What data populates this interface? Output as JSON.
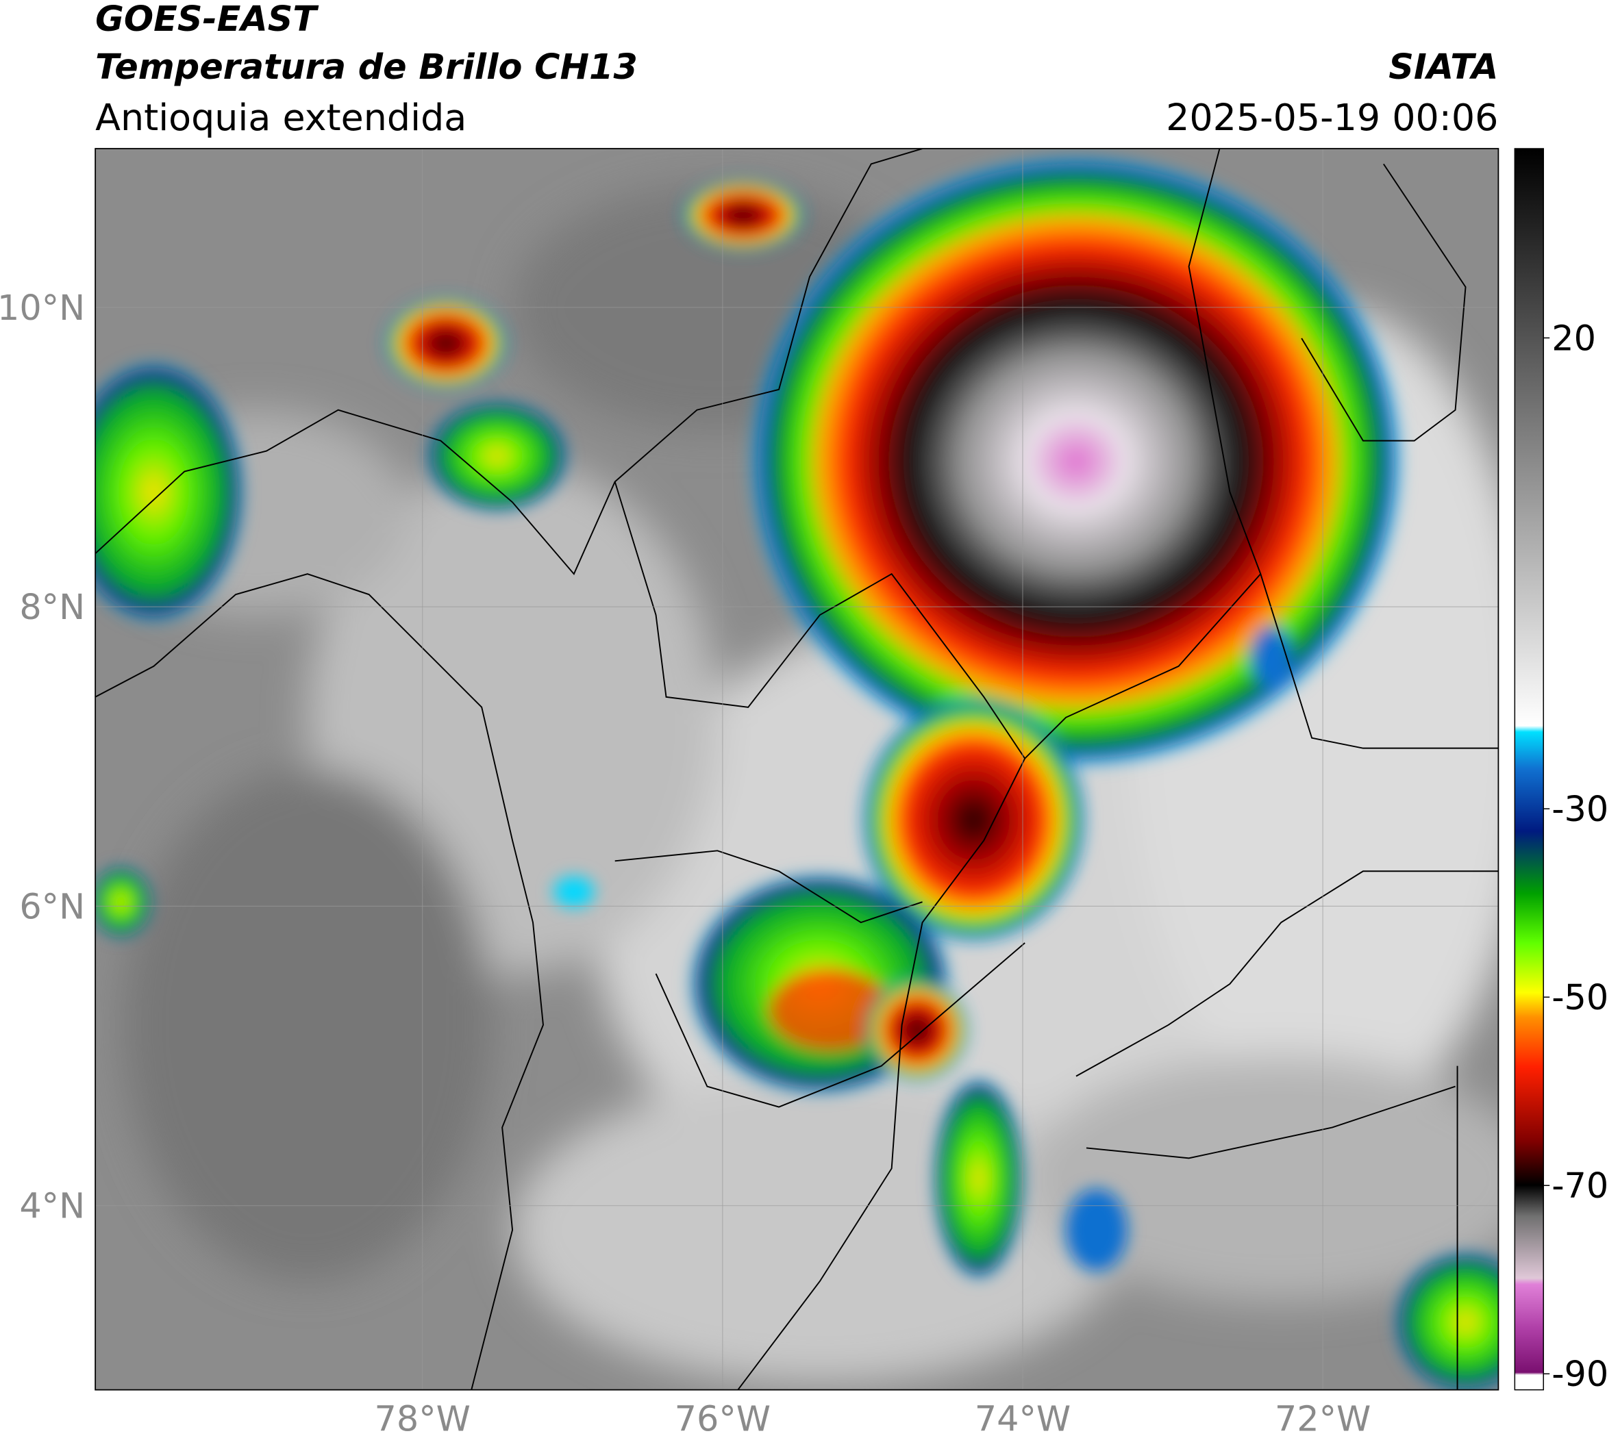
{
  "header": {
    "satellite": "GOES-EAST",
    "product": "Temperatura de Brillo CH13",
    "region": "Antioquia extendida",
    "agency": "SIATA",
    "datetime": "2025-05-19 00:06"
  },
  "map": {
    "lon_range": [
      -80.18,
      -70.83
    ],
    "lat_range": [
      2.77,
      11.06
    ],
    "lat_ticks": [
      {
        "value": 10,
        "label": "10°N"
      },
      {
        "value": 8,
        "label": "8°N"
      },
      {
        "value": 6,
        "label": "6°N"
      },
      {
        "value": 4,
        "label": "4°N"
      }
    ],
    "lon_ticks": [
      {
        "value": -78,
        "label": "78°W"
      },
      {
        "value": -76,
        "label": "76°W"
      },
      {
        "value": -74,
        "label": "74°W"
      },
      {
        "value": -72,
        "label": "72°W"
      }
    ]
  },
  "colorbar": {
    "range": [
      -91.7,
      40.1
    ],
    "ticks": [
      20,
      -30,
      -50,
      -70,
      -90
    ]
  }
}
